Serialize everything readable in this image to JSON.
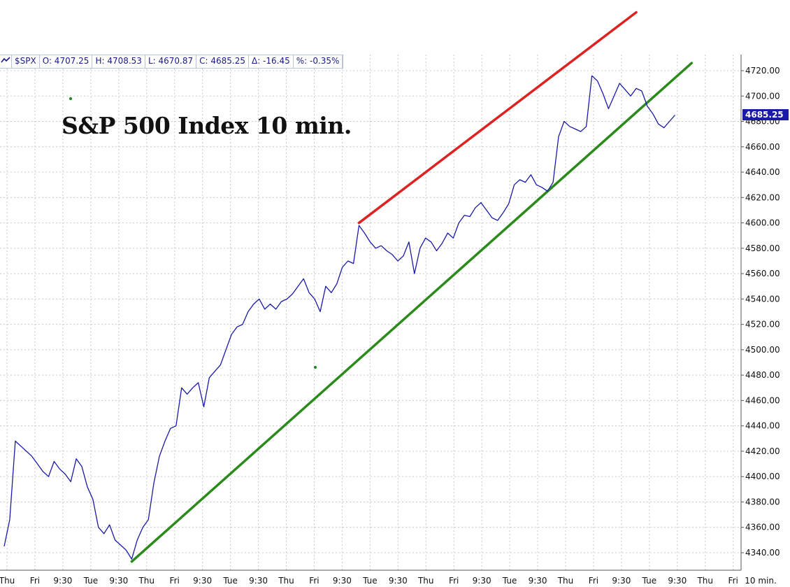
{
  "header": {
    "symbol": "$SPX",
    "open": "O: 4707.25",
    "high": "H: 4708.53",
    "low": "L: 4670.87",
    "close": "C: 4685.25",
    "change": "Δ: -16.45",
    "percent": "%: -0.35%"
  },
  "chart_data": {
    "type": "line",
    "title": "S&P 500 Index 10 min.",
    "xlabel": "",
    "ylabel": "",
    "ylim": [
      4330,
      4728
    ],
    "yticks": [
      "4340.00",
      "4360.00",
      "4380.00",
      "4400.00",
      "4420.00",
      "4440.00",
      "4460.00",
      "4480.00",
      "4500.00",
      "4520.00",
      "4540.00",
      "4560.00",
      "4580.00",
      "4600.00",
      "4620.00",
      "4640.00",
      "4660.00",
      "4680.00",
      "4700.00",
      "4720.00"
    ],
    "xticks": [
      "Thu",
      "Fri",
      "9:30",
      "Tue",
      "9:30",
      "Thu",
      "Fri",
      "9:30",
      "Tue",
      "9:30",
      "Thu",
      "Fri",
      "9:30",
      "Tue",
      "9:30",
      "Thu",
      "Fri",
      "9:30",
      "Tue",
      "9:30",
      "Thu",
      "Fri",
      "9:30",
      "Tue",
      "9:30",
      "Thu",
      "Fri"
    ],
    "timeframe_label": "10 min.",
    "last_price_label": "4685.25",
    "grid": true,
    "series": [
      {
        "color": "#1a1aa8",
        "x": [
          0,
          1,
          2,
          3,
          4,
          5,
          6,
          7,
          8,
          9,
          10,
          11,
          12,
          13,
          14,
          15,
          16,
          17,
          18,
          19,
          20,
          21,
          22,
          23,
          24,
          25,
          26,
          27,
          28,
          29,
          30,
          31,
          32,
          33,
          34,
          35,
          36,
          37,
          38,
          39,
          40,
          41,
          42,
          43,
          44,
          45,
          46,
          47,
          48,
          49,
          50,
          51,
          52,
          53,
          54,
          55,
          56,
          57,
          58,
          59,
          60,
          61,
          62,
          63,
          64,
          65,
          66,
          67,
          68,
          69,
          70,
          71,
          72,
          73,
          74,
          75,
          76,
          77,
          78,
          79,
          80,
          81,
          82,
          83,
          84,
          85,
          86,
          87,
          88,
          89,
          90,
          91,
          92,
          93,
          94,
          95,
          96,
          97,
          98,
          99,
          100,
          101,
          102,
          103,
          104,
          105,
          106,
          107,
          108,
          109,
          110,
          111,
          112,
          113,
          114,
          115,
          116,
          117,
          118,
          119,
          120,
          121
        ],
        "values": [
          4345,
          4366,
          4428,
          4424,
          4420,
          4416,
          4410,
          4404,
          4400,
          4412,
          4406,
          4402,
          4396,
          4414,
          4408,
          4392,
          4382,
          4360,
          4355,
          4362,
          4350,
          4346,
          4342,
          4335,
          4350,
          4360,
          4366,
          4395,
          4416,
          4428,
          4438,
          4440,
          4470,
          4465,
          4470,
          4474,
          4455,
          4478,
          4483,
          4488,
          4500,
          4512,
          4518,
          4520,
          4530,
          4536,
          4540,
          4532,
          4536,
          4532,
          4538,
          4540,
          4544,
          4550,
          4556,
          4545,
          4540,
          4530,
          4550,
          4545,
          4552,
          4565,
          4570,
          4568,
          4598,
          4592,
          4585,
          4580,
          4582,
          4578,
          4575,
          4570,
          4574,
          4585,
          4560,
          4580,
          4588,
          4585,
          4578,
          4584,
          4592,
          4588,
          4600,
          4606,
          4605,
          4612,
          4616,
          4610,
          4604,
          4602,
          4608,
          4615,
          4630,
          4634,
          4632,
          4638,
          4630,
          4628,
          4625,
          4632,
          4668,
          4680,
          4676,
          4674,
          4672,
          4676,
          4716,
          4712,
          4702,
          4690,
          4700,
          4710,
          4705,
          4700,
          4706,
          4704,
          4692,
          4686,
          4678,
          4675,
          4680,
          4685
        ]
      }
    ],
    "trendlines": [
      {
        "color": "#2a8a1a",
        "x1": 23,
        "y1": 4333,
        "x2": 124,
        "y2": 4726
      },
      {
        "color": "#dd2222",
        "x1": 64,
        "y1": 4600,
        "x2": 114,
        "y2": 4766
      }
    ]
  }
}
